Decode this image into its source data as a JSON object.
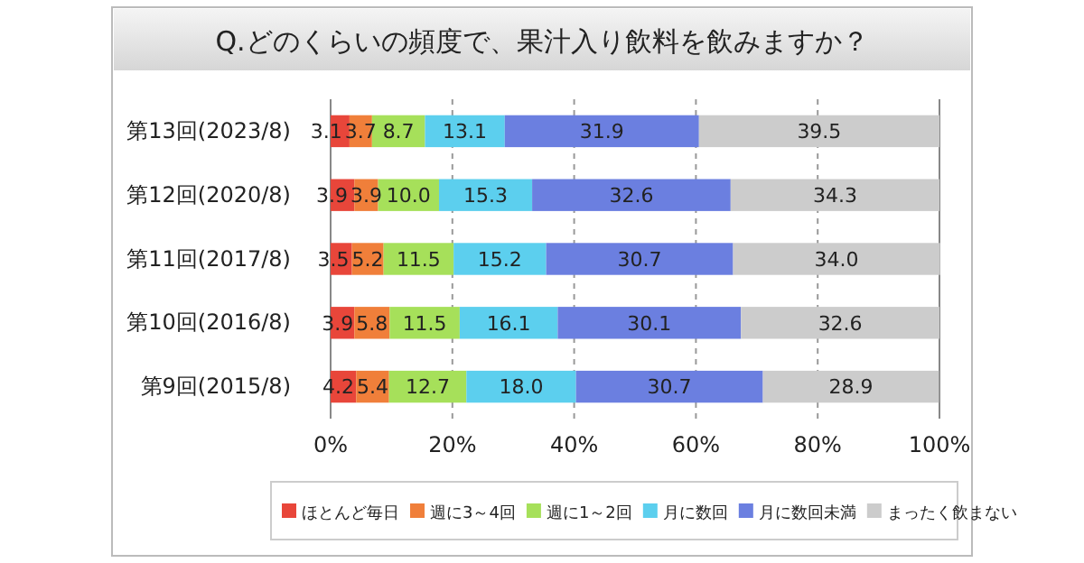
{
  "chart_data": {
    "type": "bar",
    "orientation": "horizontal",
    "stacked": true,
    "title": "Q.どのくらいの頻度で、果汁入り飲料を飲みますか？",
    "categories": [
      "第13回(2023/8)",
      "第12回(2020/8)",
      "第11回(2017/8)",
      "第10回(2016/8)",
      "第9回(2015/8)"
    ],
    "series": [
      {
        "name": "ほとんど毎日",
        "color": "#e8463a",
        "values": [
          3.1,
          3.9,
          3.5,
          3.9,
          4.2
        ],
        "value_labels": [
          "3.1",
          "3.9",
          "3.5",
          "3.9",
          "4.2"
        ]
      },
      {
        "name": "週に3～4回",
        "color": "#f07f3a",
        "values": [
          3.7,
          3.9,
          5.2,
          5.8,
          5.4
        ],
        "value_labels": [
          "3.7",
          "3.9",
          "5.2",
          "5.8",
          "5.4"
        ]
      },
      {
        "name": "週に1～2回",
        "color": "#a6e05a",
        "values": [
          8.7,
          10.0,
          11.5,
          11.5,
          12.7
        ],
        "value_labels": [
          "8.7",
          "10.0",
          "11.5",
          "11.5",
          "12.7"
        ]
      },
      {
        "name": "月に数回",
        "color": "#5ccfee",
        "values": [
          13.1,
          15.3,
          15.2,
          16.1,
          18.0
        ],
        "value_labels": [
          "13.1",
          "15.3",
          "15.2",
          "16.1",
          "18.0"
        ]
      },
      {
        "name": "月に数回未満",
        "color": "#6b7fe0",
        "values": [
          31.9,
          32.6,
          30.7,
          30.1,
          30.7
        ],
        "value_labels": [
          "31.9",
          "32.6",
          "30.7",
          "30.1",
          "30.7"
        ]
      },
      {
        "name": "まったく飲まない",
        "color": "#cccccc",
        "values": [
          39.5,
          34.3,
          34.0,
          32.6,
          28.9
        ],
        "value_labels": [
          "39.5",
          "34.3",
          "34.0",
          "32.6",
          "28.9"
        ]
      }
    ],
    "xlim": [
      0,
      100
    ],
    "xticks": [
      {
        "value": 0,
        "label": "0%"
      },
      {
        "value": 20,
        "label": "20%"
      },
      {
        "value": 40,
        "label": "40%"
      },
      {
        "value": 60,
        "label": "60%"
      },
      {
        "value": 80,
        "label": "80%"
      },
      {
        "value": 100,
        "label": "100%"
      }
    ],
    "grid": "x",
    "legend": "bottom"
  }
}
